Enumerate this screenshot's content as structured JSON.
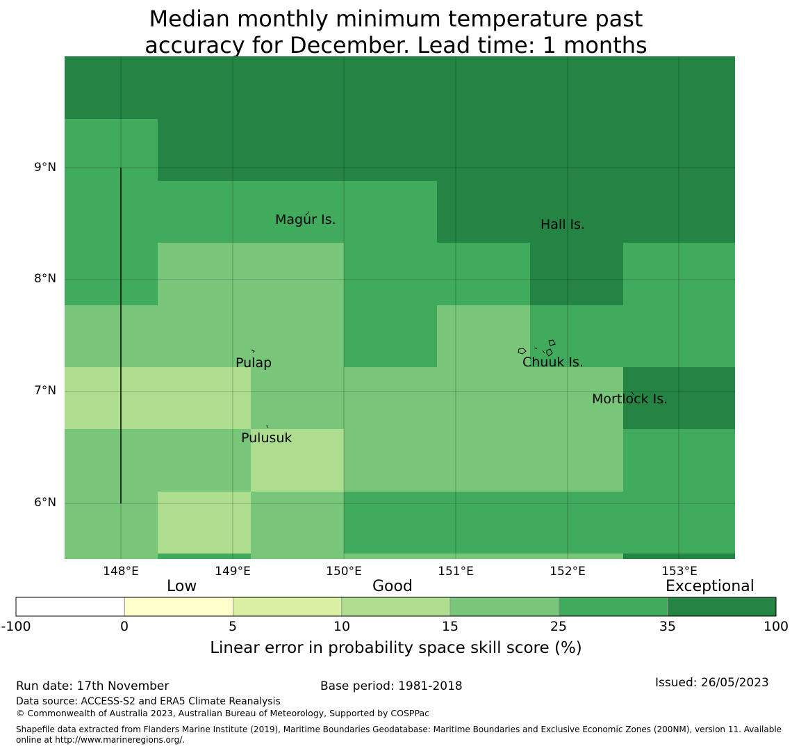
{
  "title_line1": "Median monthly minimum temperature past",
  "title_line2": "accuracy for December. Lead time: 1 months",
  "map": {
    "lat_labels": [
      "9°N",
      "8°N",
      "7°N",
      "6°N"
    ],
    "lon_labels": [
      "148°E",
      "149°E",
      "150°E",
      "151°E",
      "152°E",
      "153°E"
    ],
    "places": [
      "Magur Is.",
      "Hall Is.",
      "Pulap",
      "Chuuk Is.",
      "Mortlock Is.",
      "Pulusuk"
    ],
    "skill_grid": [
      [
        100,
        100,
        100,
        100,
        100,
        100,
        100
      ],
      [
        35,
        100,
        100,
        100,
        100,
        100,
        100
      ],
      [
        35,
        35,
        35,
        35,
        100,
        100,
        100
      ],
      [
        35,
        25,
        25,
        35,
        35,
        100,
        35
      ],
      [
        25,
        25,
        25,
        35,
        25,
        35,
        35
      ],
      [
        15,
        15,
        25,
        25,
        25,
        25,
        100
      ],
      [
        25,
        25,
        15,
        25,
        25,
        25,
        35
      ],
      [
        25,
        15,
        25,
        35,
        35,
        35,
        35
      ]
    ],
    "colors": {
      "c0": "#ffffff",
      "c5": "#ffffcc",
      "c10": "#d9f0a3",
      "c15": "#addd8e",
      "c25": "#78c679",
      "c35": "#41ab5d",
      "c100": "#238443"
    }
  },
  "colorbar": {
    "categories": [
      "Low",
      "Good",
      "Exceptional"
    ],
    "ticks": [
      "-100",
      "0",
      "5",
      "10",
      "15",
      "25",
      "35",
      "100"
    ],
    "colors": [
      "#ffffff",
      "#ffffcc",
      "#d9f0a3",
      "#addd8e",
      "#78c679",
      "#41ab5d",
      "#238443"
    ],
    "label": "Linear error in probability space skill score (%)"
  },
  "footer": {
    "run_date": "Run date: 17th November",
    "base_period": "Base period: 1981-2018",
    "issued": "Issued: 26/05/2023",
    "data_source": "Data source: ACCESS-S2 and ERA5 Climate Reanalysis",
    "copyright": "© Commonwealth of Australia 2023, Australian Bureau of Meteorology, Supported by COSPPac",
    "shapefile_line1": "Shapefile data extracted from Flanders Marine Institute (2019), Maritime Boundaries Geodatabase: Maritime Boundaries and Exclusive Economic Zones (200NM), version 11. Available",
    "shapefile_line2": "online at http://www.marineregions.org/."
  }
}
